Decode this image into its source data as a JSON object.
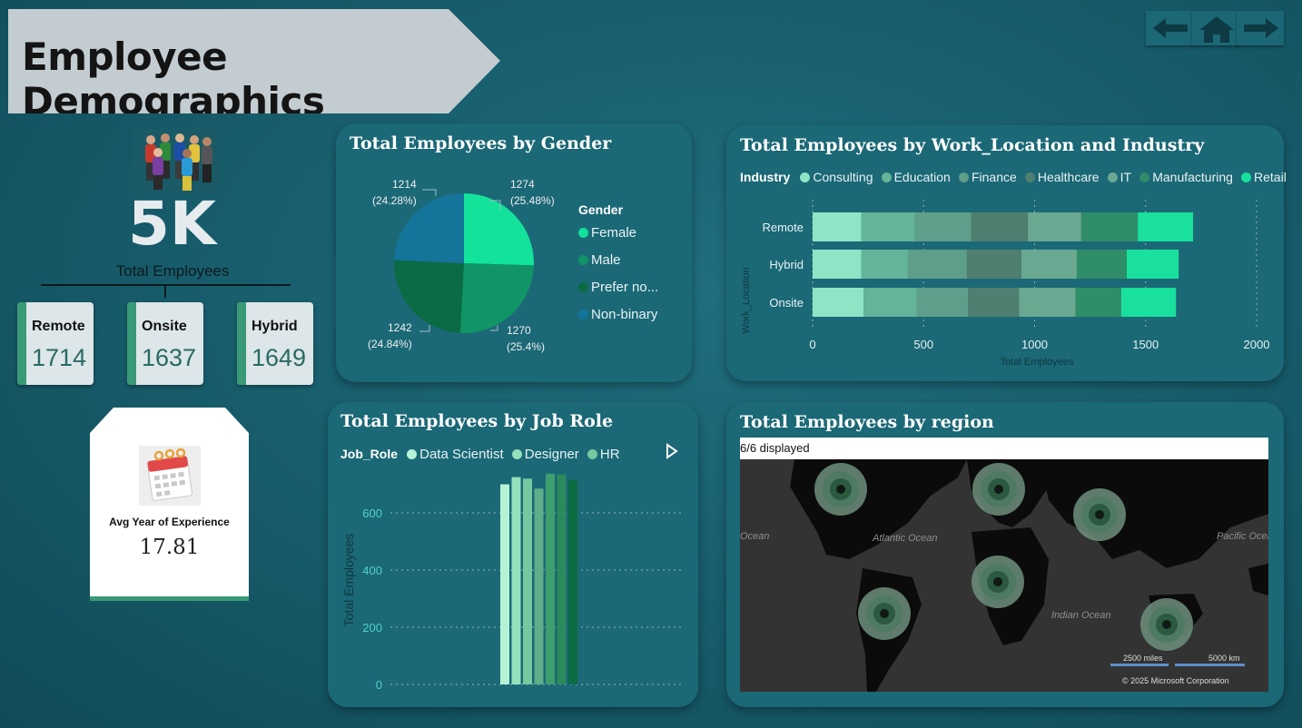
{
  "header": {
    "title": "Employee Demographics"
  },
  "nav": {
    "back_icon": "arrow-left-icon",
    "home_icon": "home-icon",
    "forward_icon": "arrow-right-icon"
  },
  "kpi": {
    "total_value": "5K",
    "total_label": "Total Employees",
    "locations": [
      {
        "label": "Remote",
        "value": "1714"
      },
      {
        "label": "Onsite",
        "value": "1637"
      },
      {
        "label": "Hybrid",
        "value": "1649"
      }
    ],
    "experience_label": "Avg Year of Experience",
    "experience_value": "17.81"
  },
  "gender_chart": {
    "title": "Total Employees by Gender",
    "legend_title": "Gender",
    "labels": {
      "female_value": "1274",
      "female_pct": "(25.48%)",
      "male_value": "1270",
      "male_pct": "(25.4%)",
      "prefer_value": "1242",
      "prefer_pct": "(24.84%)",
      "nonbinary_value": "1214",
      "nonbinary_pct": "(24.28%)"
    },
    "legend": [
      "Female",
      "Male",
      "Prefer no...",
      "Non-binary"
    ]
  },
  "location_chart": {
    "title": "Total Employees by Work_Location and Industry",
    "legend_title": "Industry",
    "legend": [
      "Consulting",
      "Education",
      "Finance",
      "Healthcare",
      "IT",
      "Manufacturing",
      "Retail"
    ],
    "y_title": "Work_Location",
    "x_title": "Total Employees",
    "x_ticks": [
      "0",
      "500",
      "1000",
      "1500",
      "2000"
    ]
  },
  "jobrole_chart": {
    "title": "Total Employees by Job Role",
    "legend_title": "Job_Role",
    "legend": [
      "Data Scientist",
      "Designer",
      "HR"
    ],
    "y_title": "Total Employees",
    "y_ticks": [
      "600",
      "400",
      "200",
      "0"
    ]
  },
  "region_map": {
    "title": "Total Employees by region",
    "status": "6/6 displayed",
    "labels": {
      "atlantic": "Atlantic Ocean",
      "pacific": "Pacific Ocean",
      "indian": "Indian Ocean",
      "ocean_left": "Ocean"
    },
    "scale_miles": "2500 miles",
    "scale_km": "5000 km",
    "copyright": "© 2025 Microsoft Corporation"
  },
  "chart_data": [
    {
      "type": "pie",
      "title": "Total Employees by Gender",
      "categories": [
        "Female",
        "Male",
        "Prefer not to say",
        "Non-binary"
      ],
      "values": [
        1274,
        1270,
        1242,
        1214
      ],
      "percentages": [
        25.48,
        25.4,
        24.84,
        24.28
      ],
      "colors": [
        "#12e29a",
        "#119466",
        "#0a6b45",
        "#15749a"
      ],
      "legend_position": "right"
    },
    {
      "type": "bar",
      "orientation": "horizontal",
      "stacked": true,
      "title": "Total Employees by Work_Location and Industry",
      "categories": [
        "Remote",
        "Hybrid",
        "Onsite"
      ],
      "xlabel": "Total Employees",
      "ylabel": "Work_Location",
      "xlim": [
        0,
        2000
      ],
      "series": [
        {
          "name": "Consulting",
          "color": "#8de5c6",
          "values": [
            220,
            220,
            230
          ]
        },
        {
          "name": "Education",
          "color": "#63b498",
          "values": [
            240,
            210,
            240
          ]
        },
        {
          "name": "Finance",
          "color": "#5e9e8a",
          "values": [
            255,
            265,
            230
          ]
        },
        {
          "name": "Healthcare",
          "color": "#4f7f70",
          "values": [
            255,
            245,
            230
          ]
        },
        {
          "name": "IT",
          "color": "#6aa892",
          "values": [
            240,
            250,
            255
          ]
        },
        {
          "name": "Manufacturing",
          "color": "#2f8d67",
          "values": [
            255,
            225,
            205
          ]
        },
        {
          "name": "Retail",
          "color": "#19e09c",
          "values": [
            249,
            234,
            247
          ]
        }
      ],
      "legend_position": "top"
    },
    {
      "type": "bar",
      "title": "Total Employees by Job Role",
      "ylabel": "Total Employees",
      "ylim": [
        0,
        720
      ],
      "values": [
        700,
        725,
        720,
        685,
        737,
        735,
        715
      ],
      "colors": [
        "#b5f2d6",
        "#93e2bb",
        "#75c9a0",
        "#5fae8a",
        "#3d9f6f",
        "#2a8a5c",
        "#0d6b42"
      ],
      "named_series": [
        "Data Scientist",
        "Designer",
        "HR"
      ],
      "legend_position": "top"
    }
  ]
}
